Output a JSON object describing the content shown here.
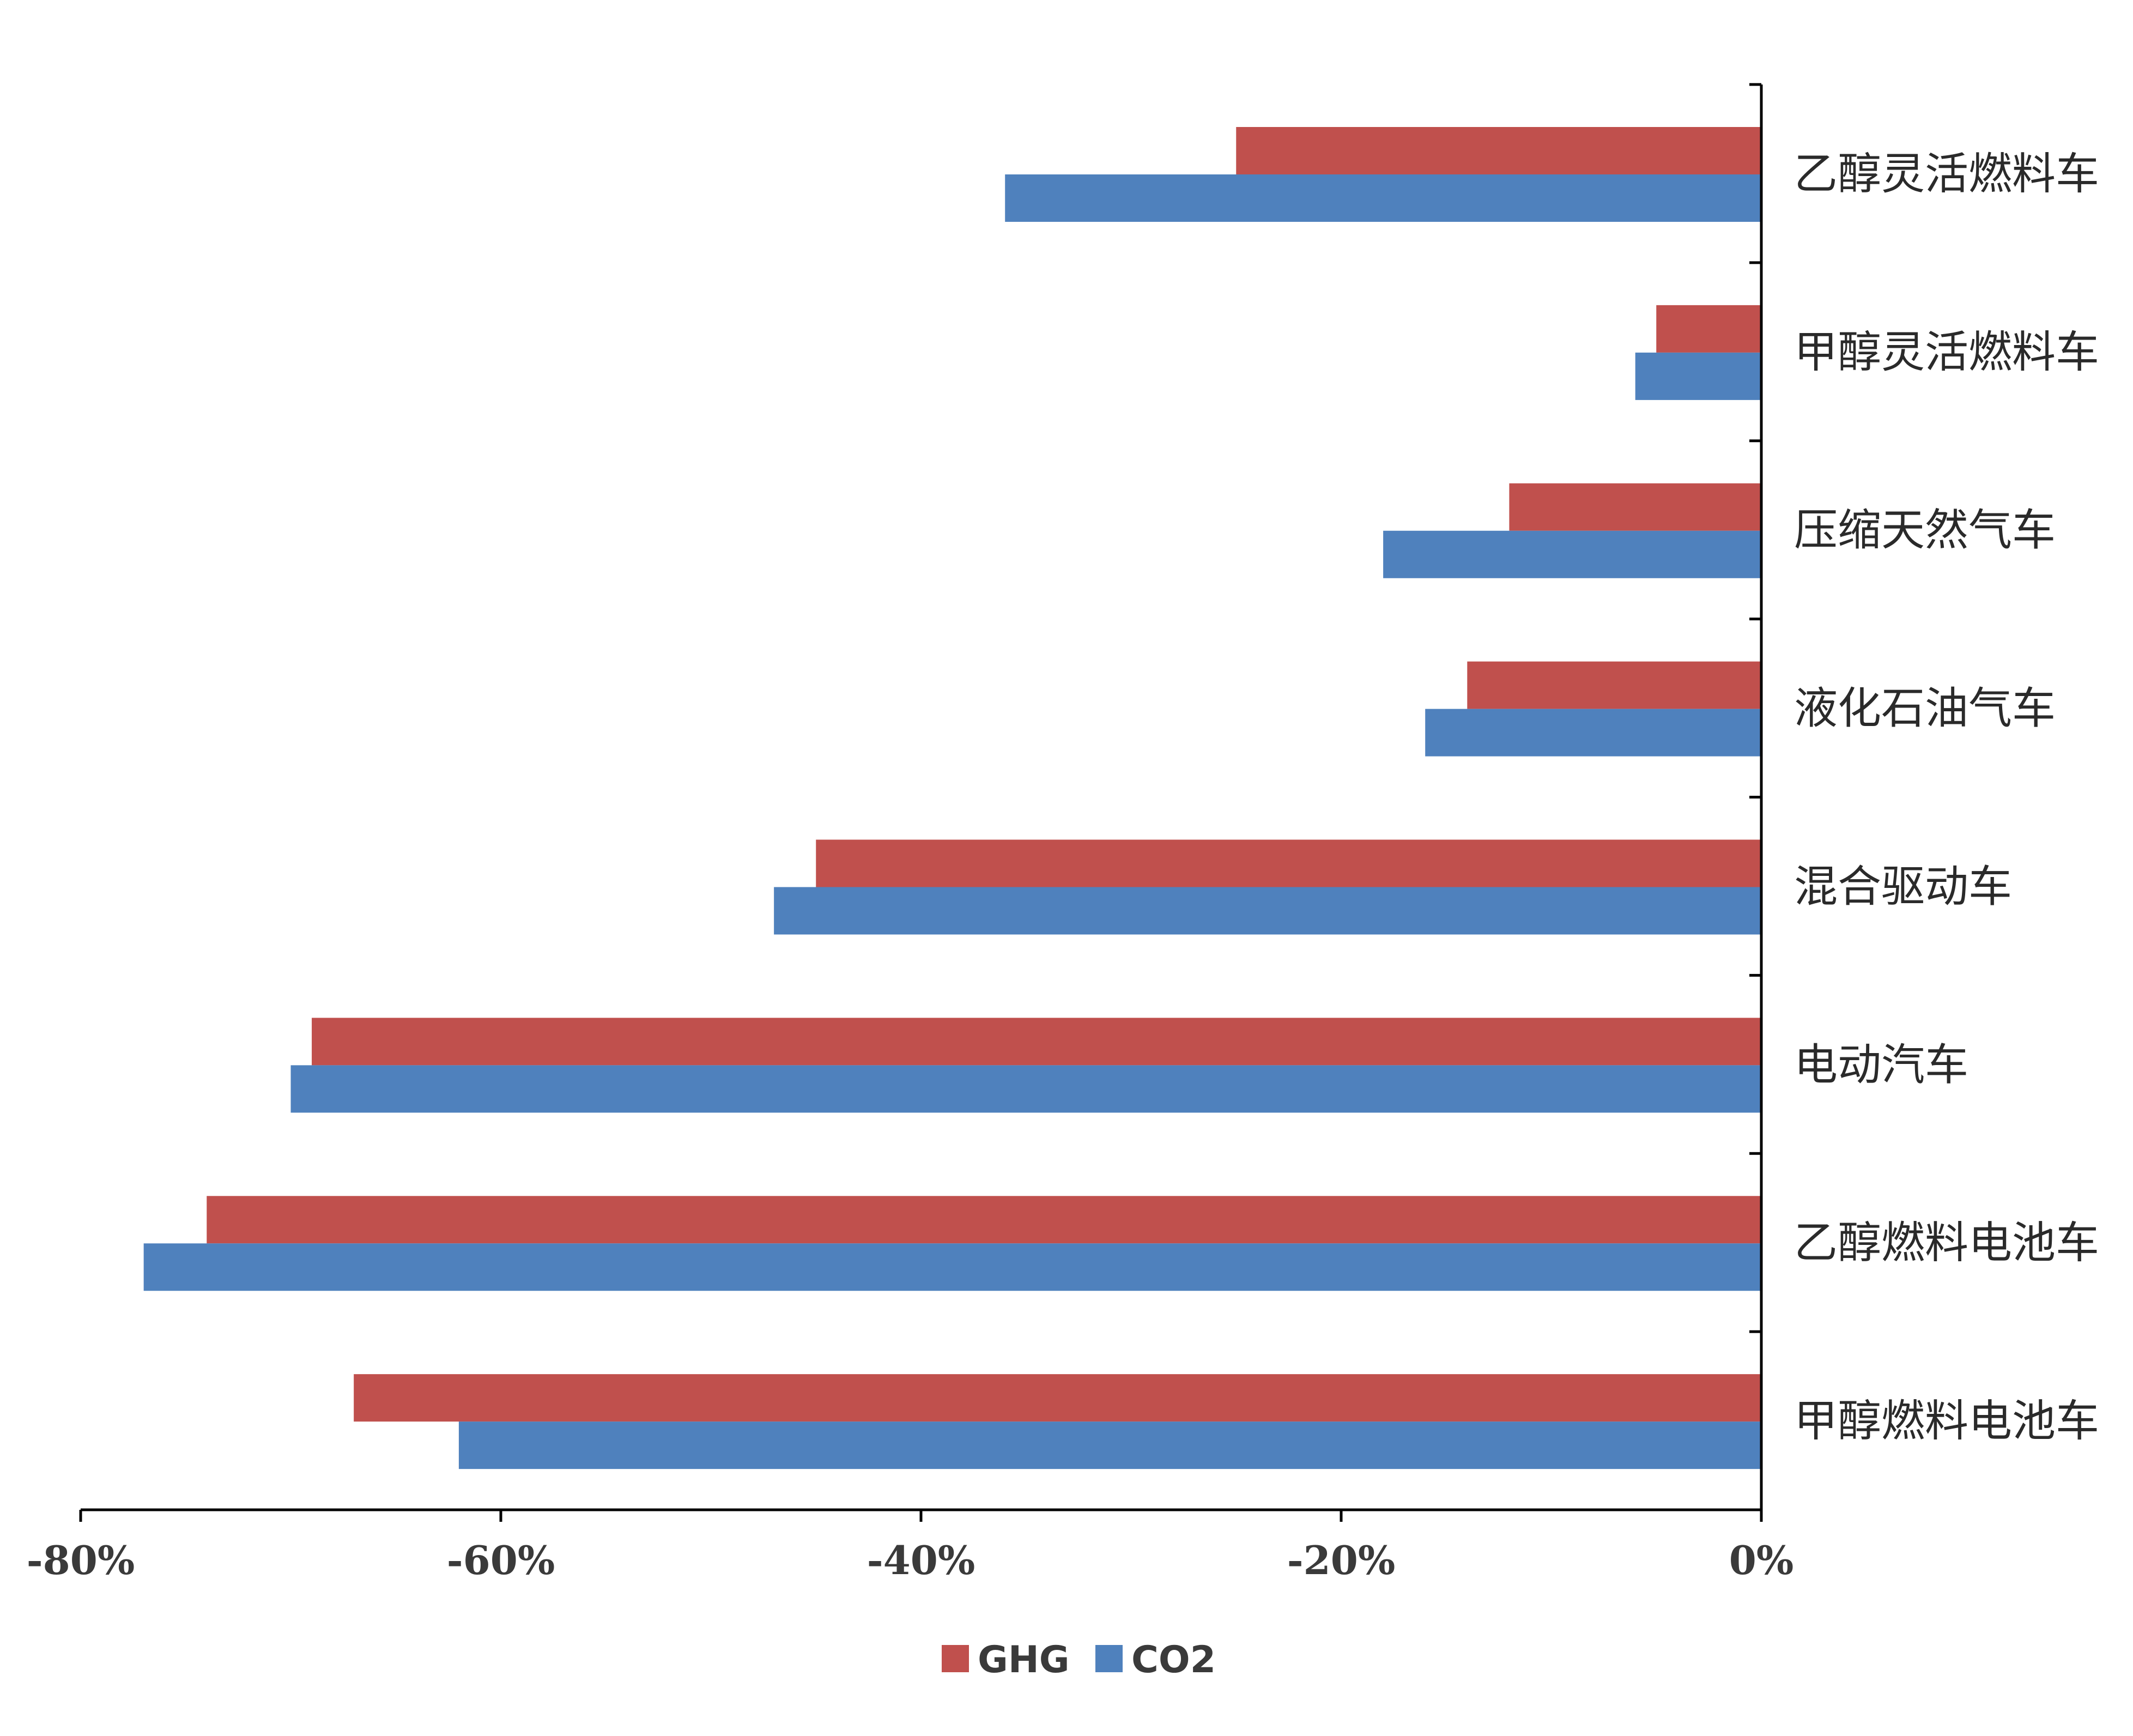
{
  "chart_data": {
    "type": "bar",
    "orientation": "horizontal",
    "title": "",
    "xlabel": "",
    "ylabel": "",
    "xlim": [
      -0.8,
      0
    ],
    "x_ticks": [
      "-80%",
      "-60%",
      "-40%",
      "-20%",
      "0%"
    ],
    "x_tick_values": [
      -0.8,
      -0.6,
      -0.4,
      -0.2,
      0
    ],
    "grid": false,
    "legend_position": "bottom-center",
    "categories": [
      "乙醇灵活燃料车",
      "甲醇灵活燃料车",
      "压缩天然气车",
      "液化石油气车",
      "混合驱动车",
      "电动汽车",
      "乙醇燃料电池车",
      "甲醇燃料电池车"
    ],
    "series": [
      {
        "name": "GHG",
        "color": "#C0504D",
        "values": [
          -0.25,
          -0.05,
          -0.12,
          -0.14,
          -0.45,
          -0.69,
          -0.74,
          -0.67
        ]
      },
      {
        "name": "CO2",
        "color": "#4F81BD",
        "values": [
          -0.36,
          -0.06,
          -0.18,
          -0.16,
          -0.47,
          -0.7,
          -0.77,
          -0.62
        ]
      }
    ]
  }
}
